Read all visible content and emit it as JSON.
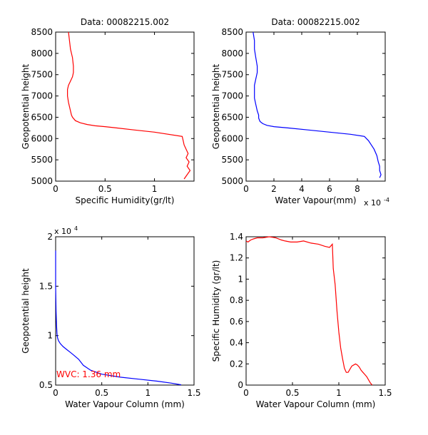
{
  "chart_data": [
    {
      "type": "line",
      "title": "Data: 00082215.002",
      "xlabel": "Specific Humidity(gr/lt)",
      "ylabel": "Geopotential height",
      "xlim": [
        0,
        1.4
      ],
      "ylim": [
        5000,
        8500
      ],
      "xticks": [
        0,
        0.5,
        1
      ],
      "xtick_labels": [
        "0",
        "0.5",
        "1"
      ],
      "yticks": [
        5000,
        5500,
        6000,
        6500,
        7000,
        7500,
        8000,
        8500
      ],
      "ytick_labels": [
        "5000",
        "5500",
        "6000",
        "6500",
        "7000",
        "7500",
        "8000",
        "8500"
      ],
      "x_exponent_label": "",
      "y_exponent_label": "",
      "annotation": "",
      "color": "#ff0000",
      "x": [
        0.13,
        0.14,
        0.15,
        0.17,
        0.18,
        0.18,
        0.17,
        0.15,
        0.13,
        0.12,
        0.12,
        0.13,
        0.14,
        0.15,
        0.16,
        0.17,
        0.2,
        0.25,
        0.32,
        0.4,
        0.5,
        0.6,
        0.8,
        1.0,
        1.28,
        1.29,
        1.3,
        1.32,
        1.34,
        1.32,
        1.35,
        1.33,
        1.36,
        1.33,
        1.3
      ],
      "y": [
        8500,
        8300,
        8100,
        7900,
        7700,
        7550,
        7450,
        7350,
        7250,
        7150,
        7000,
        6850,
        6750,
        6650,
        6550,
        6500,
        6420,
        6370,
        6330,
        6300,
        6280,
        6255,
        6200,
        6150,
        6050,
        5950,
        5850,
        5750,
        5650,
        5550,
        5450,
        5350,
        5250,
        5150,
        5050
      ]
    },
    {
      "type": "line",
      "title": "Data: 00082215.002",
      "xlabel": "Water Vapour(mm)",
      "ylabel": "Geopotential height",
      "xlim": [
        0,
        0.001
      ],
      "ylim": [
        5000,
        8500
      ],
      "xticks": [
        0,
        0.0002,
        0.0004,
        0.0006,
        0.0008
      ],
      "xtick_labels": [
        "0",
        "2",
        "4",
        "6",
        "8"
      ],
      "yticks": [
        5000,
        5500,
        6000,
        6500,
        7000,
        7500,
        8000,
        8500
      ],
      "ytick_labels": [
        "5000",
        "5500",
        "6000",
        "6500",
        "7000",
        "7500",
        "8000",
        "8500"
      ],
      "x_exponent_label": "x 10",
      "x_exponent_power": "-4",
      "y_exponent_label": "",
      "annotation": "",
      "color": "#0000ff",
      "x": [
        5e-05,
        6e-05,
        6e-05,
        7e-05,
        8e-05,
        8e-05,
        7e-05,
        6e-05,
        6e-05,
        6e-05,
        7e-05,
        8e-05,
        9e-05,
        9e-05,
        0.0001,
        0.00012,
        0.00015,
        0.0002,
        0.0003,
        0.00045,
        0.0006,
        0.00075,
        0.00085,
        0.00088,
        0.0009,
        0.00092,
        0.00094,
        0.00095,
        0.00096,
        0.00096,
        0.00097,
        0.00096
      ],
      "y": [
        8500,
        8300,
        8100,
        7900,
        7700,
        7550,
        7400,
        7250,
        7100,
        6950,
        6800,
        6650,
        6550,
        6480,
        6400,
        6350,
        6310,
        6280,
        6250,
        6200,
        6150,
        6100,
        6050,
        5950,
        5850,
        5750,
        5600,
        5450,
        5350,
        5250,
        5150,
        5080
      ]
    },
    {
      "type": "line",
      "title": "",
      "xlabel": "Water Vapour Column (mm)",
      "ylabel": "Geopotential height",
      "xlim": [
        0,
        1.5
      ],
      "ylim": [
        5000,
        20000
      ],
      "xticks": [
        0,
        0.5,
        1,
        1.5
      ],
      "xtick_labels": [
        "0",
        "0.5",
        "1",
        "1.5"
      ],
      "yticks": [
        5000,
        10000,
        15000,
        20000
      ],
      "ytick_labels": [
        "0.5",
        "1",
        "1.5",
        "2"
      ],
      "x_exponent_label": "",
      "y_exponent_label": "x 10",
      "y_exponent_power": "4",
      "annotation": "WVC: 1.36 mm",
      "annotation_color": "#ff0000",
      "color": "#0000ff",
      "x": [
        0.0,
        0.0,
        0.005,
        0.01,
        0.015,
        0.02,
        0.03,
        0.05,
        0.08,
        0.12,
        0.16,
        0.2,
        0.25,
        0.3,
        0.38,
        0.5,
        0.7,
        0.9,
        1.1,
        1.25,
        1.36
      ],
      "y": [
        18600,
        15000,
        12500,
        11000,
        10200,
        9800,
        9500,
        9200,
        8900,
        8600,
        8300,
        8000,
        7600,
        7000,
        6500,
        6100,
        5800,
        5600,
        5400,
        5200,
        5030
      ]
    },
    {
      "type": "line",
      "title": "",
      "xlabel": "Water Vapour Column (mm)",
      "ylabel": "Specific Humidity (gr/lt)",
      "xlim": [
        0,
        1.5
      ],
      "ylim": [
        0,
        1.4
      ],
      "xticks": [
        0,
        0.5,
        1,
        1.5
      ],
      "xtick_labels": [
        "0",
        "0.5",
        "1",
        "1.5"
      ],
      "yticks": [
        0,
        0.2,
        0.4,
        0.6,
        0.8,
        1.0,
        1.2,
        1.4
      ],
      "ytick_labels": [
        "0",
        "0.2",
        "0.4",
        "0.6",
        "0.8",
        "1",
        "1.2",
        "1.4"
      ],
      "x_exponent_label": "",
      "y_exponent_label": "",
      "annotation": "",
      "color": "#ff0000",
      "x": [
        0.0,
        0.02,
        0.05,
        0.08,
        0.12,
        0.18,
        0.25,
        0.32,
        0.38,
        0.42,
        0.48,
        0.55,
        0.62,
        0.7,
        0.78,
        0.85,
        0.9,
        0.93,
        0.94,
        0.96,
        0.98,
        1.0,
        1.02,
        1.04,
        1.06,
        1.08,
        1.1,
        1.12,
        1.14,
        1.16,
        1.18,
        1.2,
        1.22,
        1.24,
        1.26,
        1.28,
        1.3,
        1.32,
        1.34,
        1.36
      ],
      "y": [
        1.36,
        1.35,
        1.37,
        1.38,
        1.39,
        1.39,
        1.4,
        1.39,
        1.37,
        1.36,
        1.35,
        1.35,
        1.36,
        1.34,
        1.33,
        1.31,
        1.3,
        1.33,
        1.1,
        0.95,
        0.7,
        0.5,
        0.35,
        0.25,
        0.16,
        0.12,
        0.12,
        0.15,
        0.18,
        0.19,
        0.2,
        0.19,
        0.17,
        0.14,
        0.12,
        0.1,
        0.08,
        0.05,
        0.02,
        0.0
      ]
    }
  ]
}
